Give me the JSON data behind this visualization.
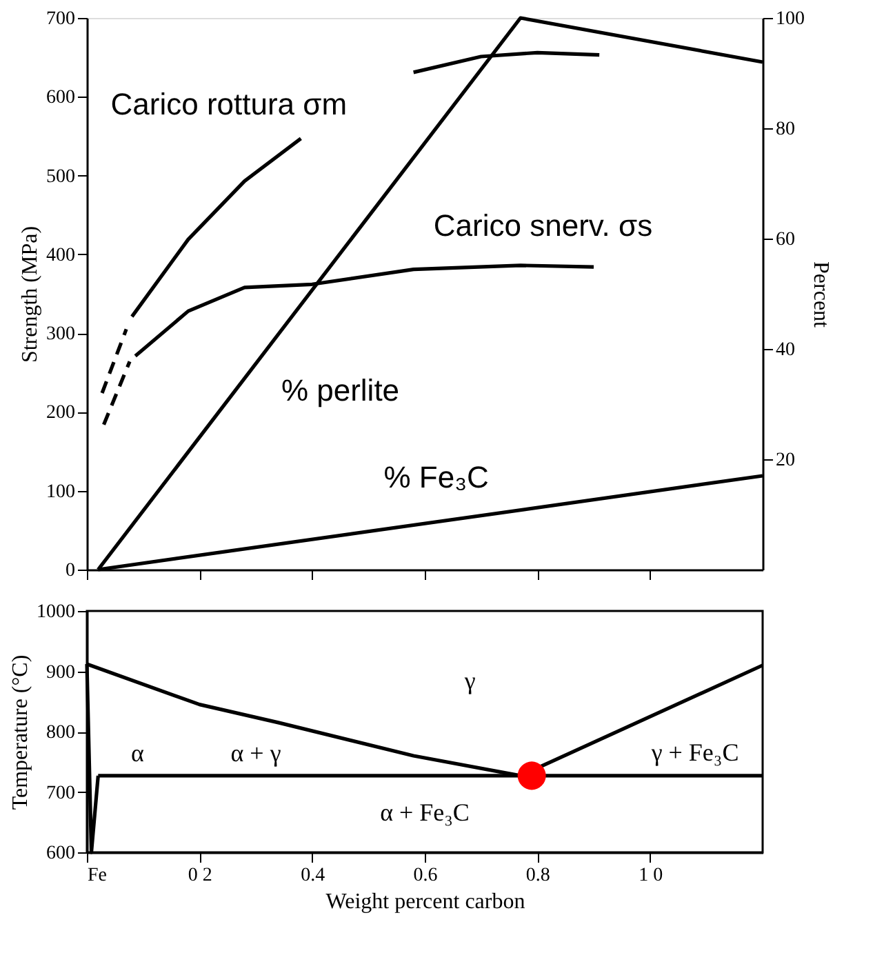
{
  "chart_data": [
    {
      "type": "line",
      "ylabel": "Strength (MPa)",
      "y2label": "Percent",
      "xlim": [
        0,
        1.2
      ],
      "xticks": [
        {
          "value": 0,
          "label": null
        },
        {
          "value": 0.2,
          "label": null
        },
        {
          "value": 0.4,
          "label": null
        },
        {
          "value": 0.6,
          "label": null
        },
        {
          "value": 0.8,
          "label": null
        },
        {
          "value": 1.0,
          "label": null
        }
      ],
      "ylim": [
        0,
        700
      ],
      "yticks": [
        0,
        100,
        200,
        300,
        400,
        500,
        600,
        700
      ],
      "y2lim": [
        0,
        100
      ],
      "y2ticks": [
        20,
        40,
        60,
        80,
        100
      ],
      "tick_labels": "y",
      "grid": false,
      "series": [
        {
          "color": "#000000",
          "line_style": "dashed",
          "x": [
            0.027,
            0.07
          ],
          "values": [
            224,
            305
          ]
        },
        {
          "color": "#000000",
          "line_style": "solid",
          "x": [
            0.08,
            0.18,
            0.28,
            0.38
          ],
          "values": [
            321,
            419,
            493,
            547
          ]
        },
        {
          "color": "#000000",
          "line_style": "solid",
          "x": [
            0.58,
            0.7,
            0.8,
            0.91
          ],
          "values": [
            631,
            651,
            656,
            653
          ]
        },
        {
          "color": "#000000",
          "line_style": "dashed",
          "x": [
            0.03,
            0.076
          ],
          "values": [
            184,
            264
          ]
        },
        {
          "color": "#000000",
          "line_style": "solid",
          "x": [
            0.086,
            0.18,
            0.28,
            0.4,
            0.58,
            0.77,
            0.9
          ],
          "values": [
            271,
            328,
            358,
            362,
            381,
            386,
            384
          ]
        },
        {
          "color": "#000000",
          "line_style": "solid",
          "axis": "y2",
          "x": [
            0.02,
            0.77,
            1.2
          ],
          "values": [
            0,
            100,
            92
          ]
        },
        {
          "color": "#000000",
          "line_style": "solid",
          "axis": "y2",
          "x": [
            0.02,
            1.2
          ],
          "values": [
            0,
            17
          ]
        }
      ],
      "annotations": [
        "Carico rottura σm",
        "Carico snerv. σs",
        "% perlite",
        "% Fe₃C"
      ]
    },
    {
      "type": "line",
      "xlabel": "Weight percent carbon",
      "ylabel": "Temperature (°C)",
      "xlim": [
        0,
        1.2
      ],
      "xticks": [
        {
          "value": 0,
          "label": "Fe"
        },
        {
          "value": 0.2,
          "label": "0 2"
        },
        {
          "value": 0.4,
          "label": "0.4"
        },
        {
          "value": 0.6,
          "label": "0.6"
        },
        {
          "value": 0.8,
          "label": "0.8"
        },
        {
          "value": 1.0,
          "label": "1 0"
        }
      ],
      "ylim": [
        600,
        1000
      ],
      "yticks": [
        600,
        700,
        800,
        900,
        1000
      ],
      "grid": false,
      "series": [
        {
          "color": "#000000",
          "line_style": "solid",
          "x": [
            0,
            0.2,
            0.34,
            0.58,
            0.77
          ],
          "values": [
            912,
            845,
            815,
            760,
            727
          ]
        },
        {
          "color": "#000000",
          "line_style": "solid",
          "x": [
            0.77,
            1.2
          ],
          "values": [
            727,
            910
          ]
        },
        {
          "color": "#000000",
          "line_style": "solid",
          "x": [
            0.02,
            1.2
          ],
          "values": [
            727,
            727
          ]
        },
        {
          "color": "#000000",
          "line_style": "solid",
          "x": [
            0,
            0.02,
            0.008
          ],
          "values": [
            912,
            727,
            600
          ]
        },
        {
          "type": "scatter",
          "marker": "circle",
          "color": "#ff0000",
          "x": [
            0.79
          ],
          "values": [
            727
          ]
        }
      ],
      "annotations": [
        "α",
        "α + γ",
        "γ",
        "γ + Fe₃C",
        "α + Fe₃C"
      ]
    }
  ]
}
